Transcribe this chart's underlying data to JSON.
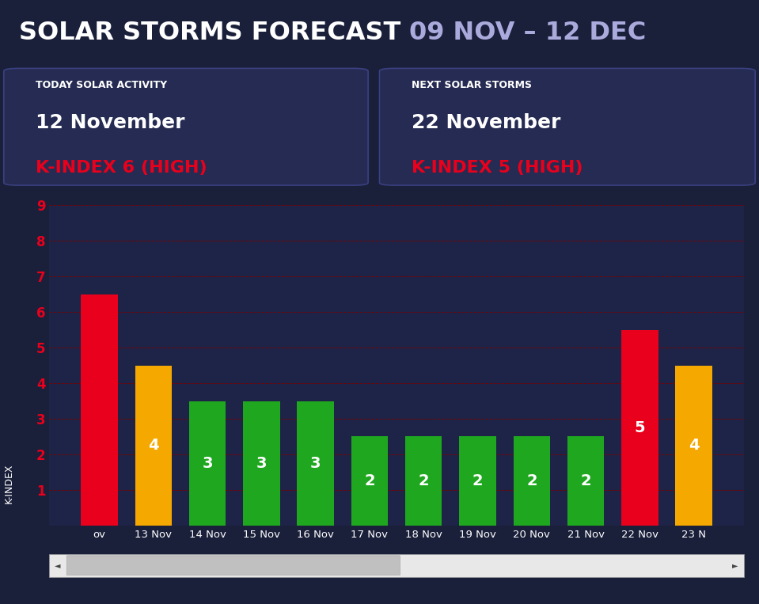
{
  "title_white": "SOLAR STORMS FORECAST ",
  "title_colored": "09 NOV – 12 DEC",
  "bg_color": "#1a1f3a",
  "chart_bg_color": "#1e2447",
  "box1_label": "TODAY SOLAR ACTIVITY",
  "box1_date": "12 November",
  "box1_kindex": "K-INDEX 6 (HIGH)",
  "box2_label": "NEXT SOLAR STORMS",
  "box2_date": "22 November",
  "box2_kindex": "K-INDEX 5 (HIGH)",
  "categories": [
    "ov",
    "13 Nov",
    "14 Nov",
    "15 Nov",
    "16 Nov",
    "17 Nov",
    "18 Nov",
    "19 Nov",
    "20 Nov",
    "21 Nov",
    "22 Nov",
    "23 N"
  ],
  "values": [
    6.5,
    4.5,
    3.5,
    3.5,
    3.5,
    2.5,
    2.5,
    2.5,
    2.5,
    2.5,
    5.5,
    4.5
  ],
  "labels": [
    "",
    "4",
    "3",
    "3",
    "3",
    "2",
    "2",
    "2",
    "2",
    "2",
    "5",
    "4"
  ],
  "bar_colors": [
    "#e8001c",
    "#f5a800",
    "#1fa81f",
    "#1fa81f",
    "#1fa81f",
    "#1fa81f",
    "#1fa81f",
    "#1fa81f",
    "#1fa81f",
    "#1fa81f",
    "#e8001c",
    "#f5a800"
  ],
  "ylabel": "K-INDEX",
  "ylim": [
    0,
    9
  ],
  "yticks": [
    1,
    2,
    3,
    4,
    5,
    6,
    7,
    8,
    9
  ],
  "grid_color": "#7a0000",
  "tick_color": "#e8001c",
  "white_color": "#ffffff",
  "red_color": "#e8001c",
  "title_colored_color": "#aaaadd",
  "box_bg_color": "#252b52",
  "box_border_color": "#3a4080",
  "scrollbar_bg": "#e8e8e8",
  "scrollbar_thumb": "#c0c0c0"
}
